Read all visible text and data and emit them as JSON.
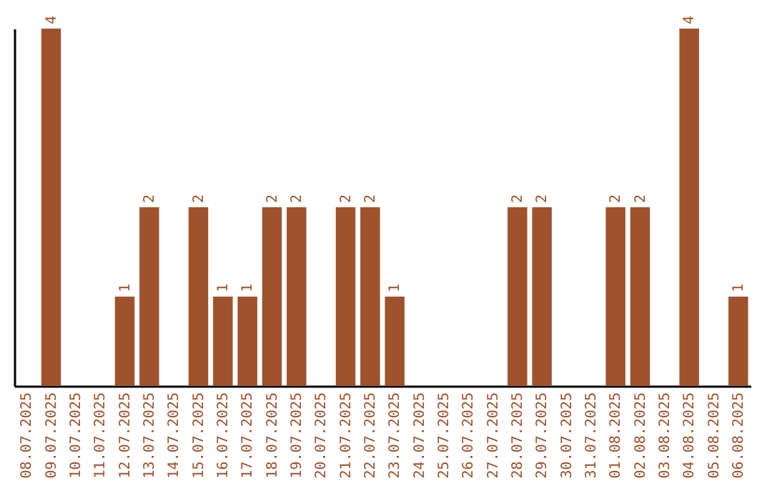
{
  "chart_data": {
    "type": "bar",
    "categories": [
      "08.07.2025",
      "09.07.2025",
      "10.07.2025",
      "11.07.2025",
      "12.07.2025",
      "13.07.2025",
      "14.07.2025",
      "15.07.2025",
      "16.07.2025",
      "17.07.2025",
      "18.07.2025",
      "19.07.2025",
      "20.07.2025",
      "21.07.2025",
      "22.07.2025",
      "23.07.2025",
      "24.07.2025",
      "25.07.2025",
      "26.07.2025",
      "27.07.2025",
      "28.07.2025",
      "29.07.2025",
      "30.07.2025",
      "31.07.2025",
      "01.08.2025",
      "02.08.2025",
      "03.08.2025",
      "04.08.2025",
      "05.08.2025",
      "06.08.2025"
    ],
    "values": [
      0,
      4,
      0,
      0,
      1,
      2,
      0,
      2,
      1,
      1,
      2,
      2,
      0,
      2,
      2,
      1,
      0,
      0,
      0,
      0,
      2,
      2,
      0,
      0,
      2,
      2,
      0,
      4,
      0,
      1
    ],
    "value_labels": [
      null,
      "4",
      null,
      null,
      "1",
      "2",
      null,
      "2",
      "1",
      "1",
      "2",
      "2",
      null,
      "2",
      "2",
      "1",
      null,
      null,
      null,
      null,
      "2",
      "2",
      null,
      null,
      "2",
      "2",
      null,
      "4",
      null,
      "1"
    ],
    "color": "#a0522d",
    "tick_labels": "x",
    "grid": false
  }
}
